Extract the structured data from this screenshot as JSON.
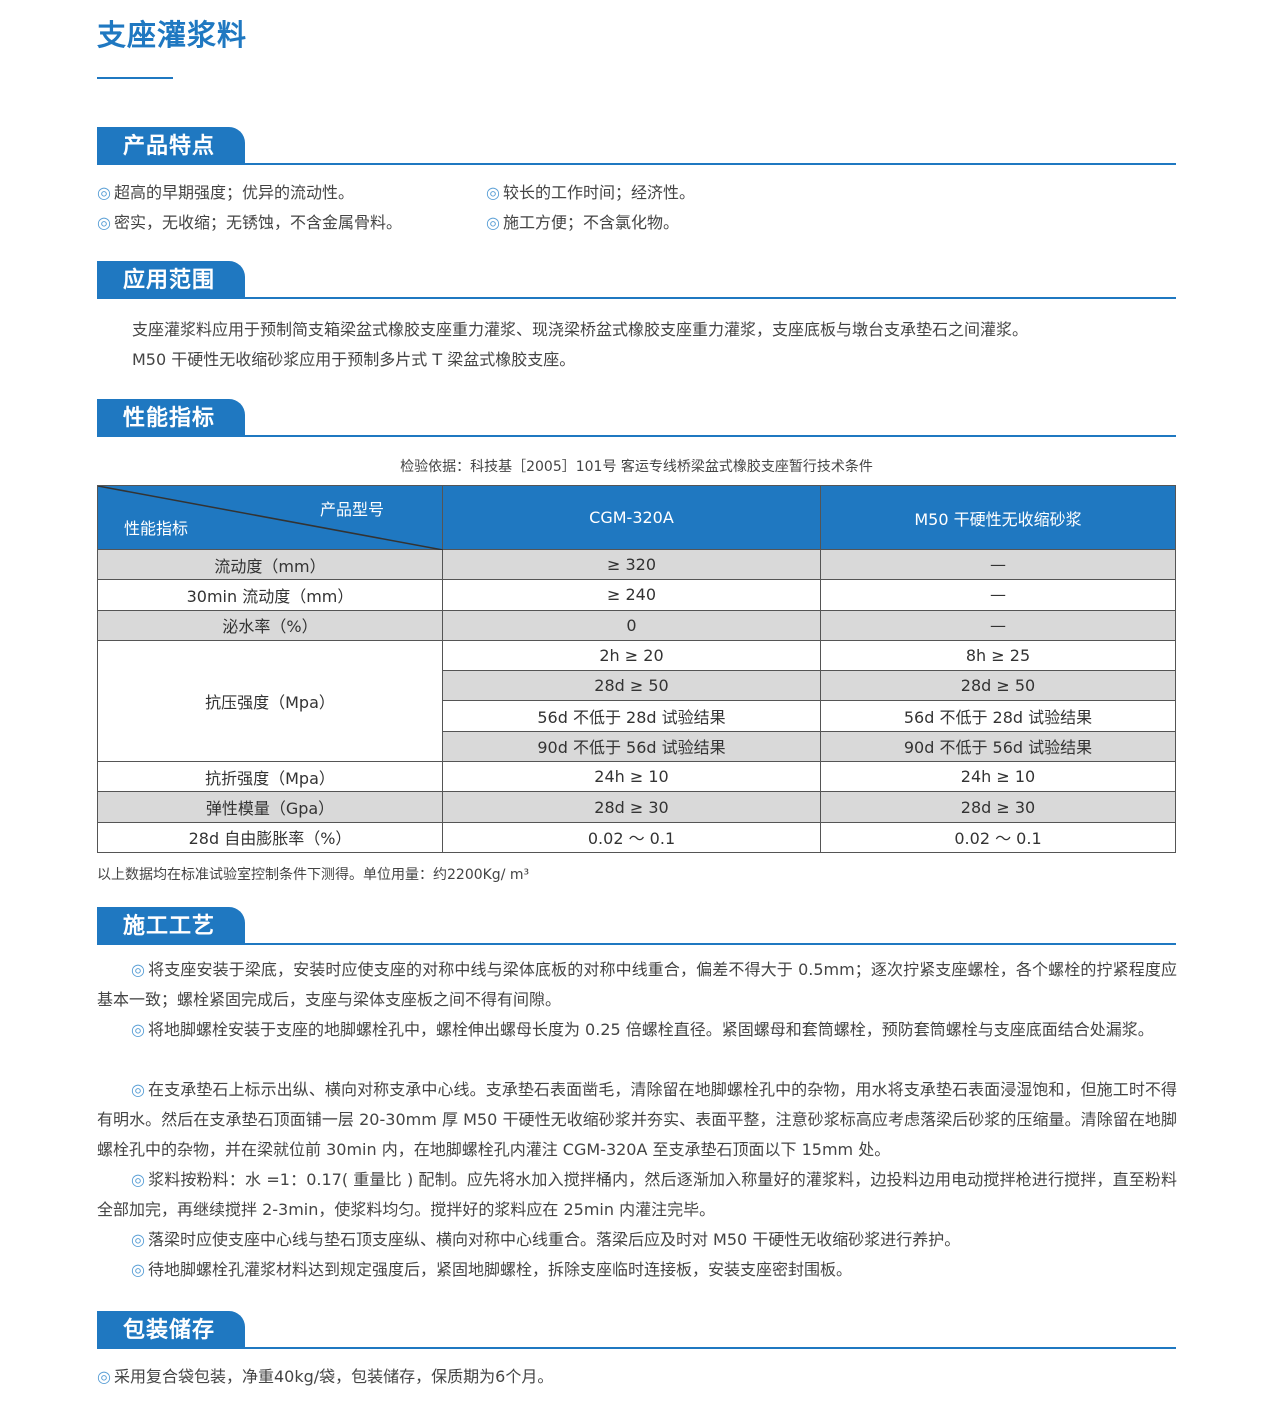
{
  "title": "支座灌浆料",
  "sections": {
    "features": {
      "heading": "产品特点",
      "items": [
        "超高的早期强度；优异的流动性。",
        "较长的工作时间；经济性。",
        "密实，无收缩；无锈蚀，不含金属骨料。",
        "施工方便；不含氯化物。"
      ]
    },
    "scope": {
      "heading": "应用范围",
      "lines": [
        "支座灌浆料应用于预制简支箱梁盆式橡胶支座重力灌浆、现浇梁桥盆式橡胶支座重力灌浆，支座底板与墩台支承垫石之间灌浆。",
        "M50 干硬性无收缩砂浆应用于预制多片式 T 梁盆式橡胶支座。"
      ]
    },
    "performance": {
      "heading": "性能指标",
      "caption": "检验依据：科技基［2005］101号 客运专线桥梁盆式橡胶支座暂行技术条件",
      "header": {
        "corner_top": "产品型号",
        "corner_bottom": "性能指标",
        "col1": "CGM-320A",
        "col2": "M50 干硬性无收缩砂浆"
      },
      "rows": [
        {
          "label": "流动度（mm）",
          "c1": "≥ 320",
          "c2": "—"
        },
        {
          "label": "30min 流动度（mm）",
          "c1": "≥ 240",
          "c2": "—"
        },
        {
          "label": "泌水率（%）",
          "c1": "0",
          "c2": "—"
        },
        {
          "label": "抗压强度（Mpa）",
          "sub": [
            {
              "c1": "2h ≥ 20",
              "c2": "8h ≥ 25"
            },
            {
              "c1": "28d ≥ 50",
              "c2": "28d ≥ 50"
            },
            {
              "c1": "56d 不低于 28d 试验结果",
              "c2": "56d 不低于 28d 试验结果"
            },
            {
              "c1": "90d 不低于 56d 试验结果",
              "c2": "90d 不低于 56d 试验结果"
            }
          ]
        },
        {
          "label": "抗折强度（Mpa）",
          "c1": "24h ≥ 10",
          "c2": "24h ≥ 10"
        },
        {
          "label": "弹性模量（Gpa）",
          "c1": "28d ≥ 30",
          "c2": "28d ≥ 30"
        },
        {
          "label": "28d 自由膨胀率（%）",
          "c1": "0.02 ～ 0.1",
          "c2": "0.02 ～ 0.1"
        }
      ],
      "note": "以上数据均在标准试验室控制条件下测得。单位用量：约2200Kg/ m³"
    },
    "process": {
      "heading": "施工工艺",
      "paragraphs": [
        "将支座安装于梁底，安装时应使支座的对称中线与梁体底板的对称中线重合，偏差不得大于 0.5mm；逐次拧紧支座螺栓，各个螺栓的拧紧程度应基本一致；螺栓紧固完成后，支座与梁体支座板之间不得有间隙。",
        "将地脚螺栓安装于支座的地脚螺栓孔中，螺栓伸出螺母长度为 0.25 倍螺栓直径。紧固螺母和套筒螺栓，预防套筒螺栓与支座底面结合处漏浆。",
        "在支承垫石上标示出纵、横向对称支承中心线。支承垫石表面凿毛，清除留在地脚螺栓孔中的杂物，用水将支承垫石表面浸湿饱和，但施工时不得有明水。然后在支承垫石顶面铺一层 20-30mm 厚 M50 干硬性无收缩砂浆并夯实、表面平整，注意砂浆标高应考虑落梁后砂浆的压缩量。清除留在地脚螺栓孔中的杂物，并在梁就位前 30min 内，在地脚螺栓孔内灌注 CGM-320A 至支承垫石顶面以下 15mm 处。",
        "浆料按粉料：水 =1：0.17( 重量比 ) 配制。应先将水加入搅拌桶内，然后逐渐加入称量好的灌浆料，边投料边用电动搅拌枪进行搅拌，直至粉料全部加完，再继续搅拌 2-3min，使浆料均匀。搅拌好的浆料应在 25min 内灌注完毕。",
        "落梁时应使支座中心线与垫石顶支座纵、横向对称中心线重合。落梁后应及时对 M50 干硬性无收缩砂浆进行养护。",
        "待地脚螺栓孔灌浆材料达到规定强度后，紧固地脚螺栓，拆除支座临时连接板，安装支座密封围板。"
      ]
    },
    "packaging": {
      "heading": "包装储存",
      "text": "采用复合袋包装，净重40kg/袋，包装储存，保质期为6个月。"
    }
  },
  "bullet": "◎",
  "colors": {
    "accent": "#1f78c1",
    "row_gray": "#d9d9d9"
  }
}
